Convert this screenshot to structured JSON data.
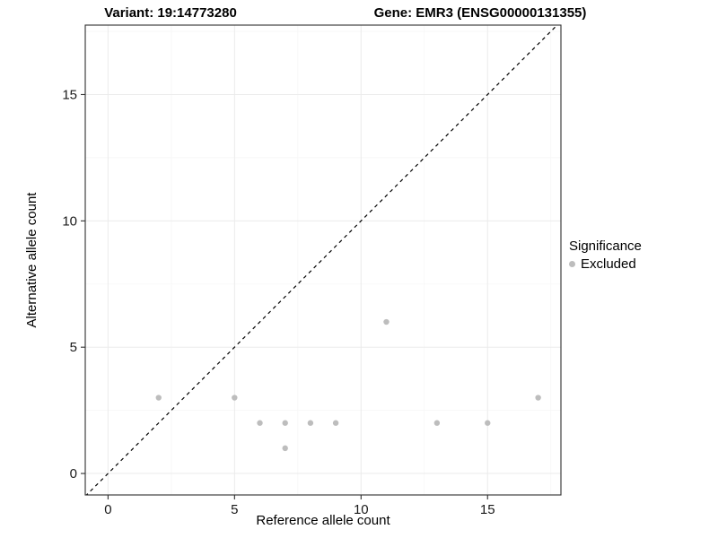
{
  "chart_data": {
    "type": "scatter",
    "title_left": "Variant: 19:14773280",
    "title_right": "Gene: EMR3 (ENSG00000131355)",
    "xlabel": "Reference allele count",
    "ylabel": "Alternative allele count",
    "xlim": [
      -0.9,
      17.9
    ],
    "ylim": [
      -0.85,
      17.75
    ],
    "xticks": [
      0,
      5,
      10,
      15
    ],
    "yticks": [
      0,
      5,
      10,
      15
    ],
    "xminor": [
      2.5,
      7.5,
      12.5,
      17.5
    ],
    "yminor": [
      2.5,
      7.5,
      12.5,
      17.5
    ],
    "grid": true,
    "identity_line": {
      "style": "dashed",
      "color": "#000000",
      "slope": 1,
      "intercept": 0
    },
    "legend": {
      "position": "right",
      "title": "Significance",
      "entries": [
        {
          "label": "Excluded",
          "color": "#bdbdbd"
        }
      ]
    },
    "series": [
      {
        "name": "Excluded",
        "color": "#bdbdbd",
        "points": [
          [
            2,
            3
          ],
          [
            5,
            3
          ],
          [
            6,
            2
          ],
          [
            7,
            2
          ],
          [
            7,
            1
          ],
          [
            8,
            2
          ],
          [
            9,
            2
          ],
          [
            11,
            6
          ],
          [
            13,
            2
          ],
          [
            15,
            2
          ],
          [
            17,
            3
          ]
        ]
      }
    ],
    "colors": {
      "grid_major": "#ebebeb",
      "grid_minor": "#f6f6f6",
      "panel_border": "#2f2f2f",
      "tick": "#2f2f2f",
      "tick_label": "#1a1a1a",
      "panel_background": "#ffffff"
    }
  }
}
